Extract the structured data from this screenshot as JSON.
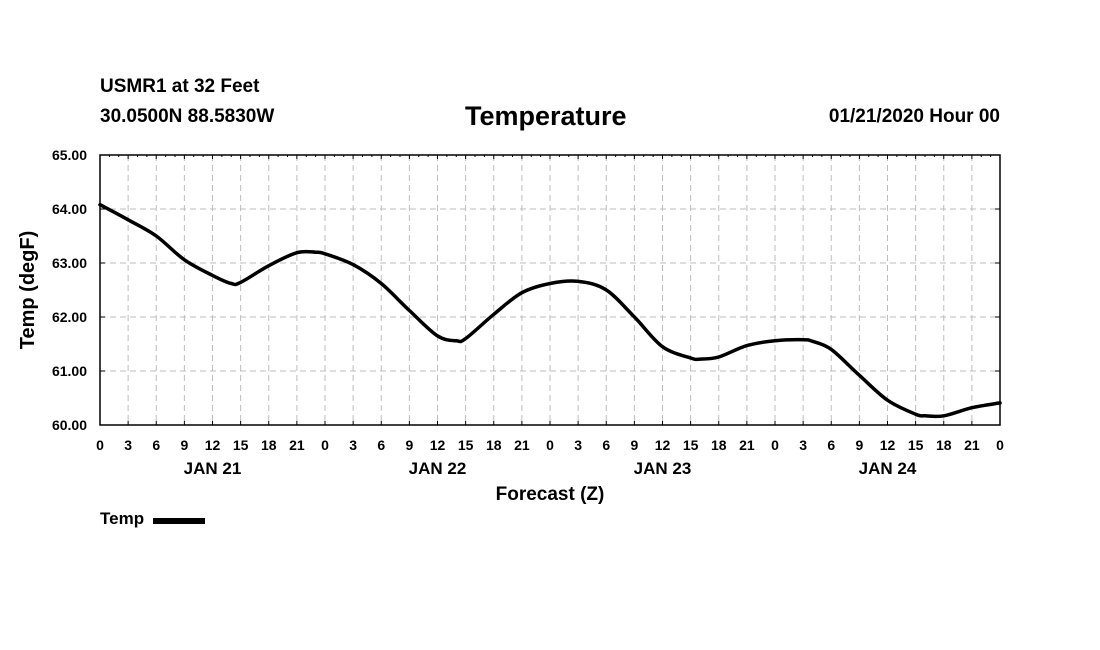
{
  "header": {
    "station": "USMR1 at 32 Feet",
    "coords": "30.0500N 88.5830W",
    "title": "Temperature",
    "run": "01/21/2020 Hour 00"
  },
  "legend": {
    "label": "Temp",
    "color": "#000000"
  },
  "chart_data": {
    "type": "line",
    "title": "Temperature",
    "xlabel": "Forecast (Z)",
    "ylabel": "Temp (degF)",
    "ylim": [
      60,
      65
    ],
    "xlim": [
      0,
      96
    ],
    "grid": true,
    "x_tick_labels": [
      "0",
      "3",
      "6",
      "9",
      "12",
      "15",
      "18",
      "21",
      "0",
      "3",
      "6",
      "9",
      "12",
      "15",
      "18",
      "21",
      "0",
      "3",
      "6",
      "9",
      "12",
      "15",
      "18",
      "21",
      "0",
      "3",
      "6",
      "9",
      "12",
      "15",
      "18",
      "21",
      "0"
    ],
    "y_tick_labels": [
      "60.00",
      "61.00",
      "62.00",
      "63.00",
      "64.00",
      "65.00"
    ],
    "day_labels": [
      {
        "label": "JAN 21",
        "hour": 12
      },
      {
        "label": "JAN 22",
        "hour": 36
      },
      {
        "label": "JAN 23",
        "hour": 60
      },
      {
        "label": "JAN 24",
        "hour": 84
      }
    ],
    "legend_position": "bottom-left",
    "series": [
      {
        "name": "Temp",
        "color": "#000000",
        "x": [
          0,
          3,
          6,
          9,
          12,
          14,
          15,
          18,
          21,
          23,
          24,
          27,
          30,
          33,
          36,
          38,
          39,
          42,
          45,
          48,
          51,
          54,
          57,
          60,
          63,
          64,
          66,
          69,
          72,
          75,
          76,
          78,
          81,
          84,
          87,
          88,
          90,
          93,
          96
        ],
        "values": [
          64.08,
          63.8,
          63.5,
          63.06,
          62.77,
          62.62,
          62.64,
          62.95,
          63.19,
          63.2,
          63.17,
          62.97,
          62.62,
          62.12,
          61.65,
          61.56,
          61.6,
          62.05,
          62.45,
          62.62,
          62.66,
          62.5,
          62.0,
          61.45,
          61.24,
          61.22,
          61.26,
          61.47,
          61.56,
          61.58,
          61.55,
          61.4,
          60.92,
          60.46,
          60.2,
          60.17,
          60.17,
          60.32,
          60.41
        ]
      }
    ]
  }
}
